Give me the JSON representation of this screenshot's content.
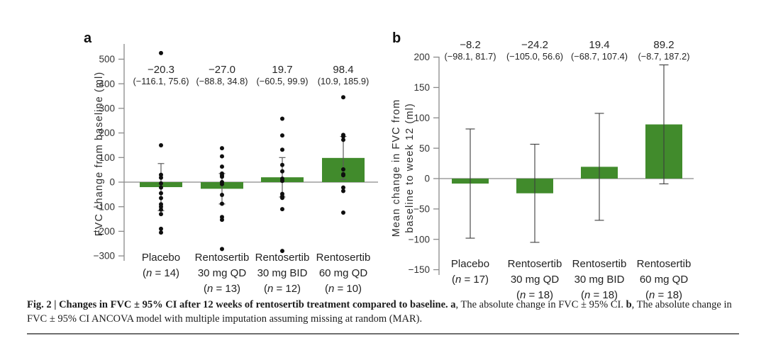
{
  "panel_labels": {
    "a": "a",
    "b": "b"
  },
  "colors": {
    "bar_green": "#418b2c",
    "axis_gray": "#8a8a8a",
    "errorbar_a": "#5c5c5c",
    "errorbar_b": "#3d3d3d",
    "point_black": "#0f0f0f",
    "tick_text": "#333333",
    "label_text": "#222222"
  },
  "caption": {
    "segments": [
      {
        "text": "Fig. 2 | Changes in FVC  ±  95% CI after 12 weeks of rentosertib treatment compared to baseline. ",
        "bold": true
      },
      {
        "text": "a",
        "bold": true
      },
      {
        "text": ", The absolute change in FVC ± 95% CI. ",
        "bold": false
      },
      {
        "text": "b",
        "bold": true
      },
      {
        "text": ", The absolute change in FVC ± 95% CI ANCOVA model with multiple imputation assuming missing at random (MAR).",
        "bold": false
      }
    ]
  },
  "chart_data": [
    {
      "id": "a",
      "type": "bar",
      "ylabel_lines": [
        "FVC change from baseline (ml)"
      ],
      "ylim": [
        -300,
        500
      ],
      "ytick_step": 100,
      "grid": false,
      "legend": "none",
      "categories": [
        [
          "Placebo",
          "(n = 14)"
        ],
        [
          "Rentosertib",
          "30 mg QD",
          "(n = 13)"
        ],
        [
          "Rentosertib",
          "30 mg BID",
          "(n = 12)"
        ],
        [
          "Rentosertib",
          "60 mg QD",
          "(n = 10)"
        ]
      ],
      "values": [
        -20.3,
        -27.0,
        19.7,
        98.4
      ],
      "ci": [
        [
          -116.1,
          75.6
        ],
        [
          -88.8,
          34.8
        ],
        [
          -60.5,
          99.9
        ],
        [
          10.9,
          185.9
        ]
      ],
      "annotation_values": [
        "−20.3",
        "−27.0",
        "19.7",
        "98.4"
      ],
      "annotation_cis": [
        "(−116.1, 75.6)",
        "(−88.8, 34.8)",
        "(−60.5, 99.9)",
        "(10.9, 185.9)"
      ],
      "show_points": true,
      "points": [
        [
          525,
          150,
          30,
          18,
          -5,
          -22,
          -45,
          -65,
          -90,
          -100,
          -112,
          -130,
          -190,
          -205
        ],
        [
          138,
          105,
          63,
          35,
          28,
          22,
          0,
          -8,
          -52,
          -88,
          -142,
          -153,
          -272
        ],
        [
          258,
          190,
          132,
          70,
          44,
          14,
          5,
          -48,
          -58,
          -64,
          -110,
          -280
        ],
        [
          345,
          192,
          186,
          172,
          52,
          32,
          28,
          -22,
          -36,
          -124
        ]
      ]
    },
    {
      "id": "b",
      "type": "bar",
      "ylabel_lines": [
        "Mean change in FVC from",
        "baseline to week 12 (ml)"
      ],
      "ylim": [
        -150,
        200
      ],
      "ytick_step": 50,
      "grid": false,
      "legend": "none",
      "categories": [
        [
          "Placebo",
          "(n = 17)"
        ],
        [
          "Rentosertib",
          "30 mg QD",
          "(n = 18)"
        ],
        [
          "Rentosertib",
          "30 mg BID",
          "(n = 18)"
        ],
        [
          "Rentosertib",
          "60 mg QD",
          "(n = 18)"
        ]
      ],
      "values": [
        -8.2,
        -24.2,
        19.4,
        89.2
      ],
      "ci": [
        [
          -98.1,
          81.7
        ],
        [
          -105.0,
          56.6
        ],
        [
          -68.7,
          107.4
        ],
        [
          -8.7,
          187.2
        ]
      ],
      "annotation_values": [
        "−8.2",
        "−24.2",
        "19.4",
        "89.2"
      ],
      "annotation_cis": [
        "(−98.1, 81.7)",
        "(−105.0, 56.6)",
        "(−68.7, 107.4)",
        "(−8.7, 187.2)"
      ],
      "show_points": false,
      "points": []
    }
  ]
}
